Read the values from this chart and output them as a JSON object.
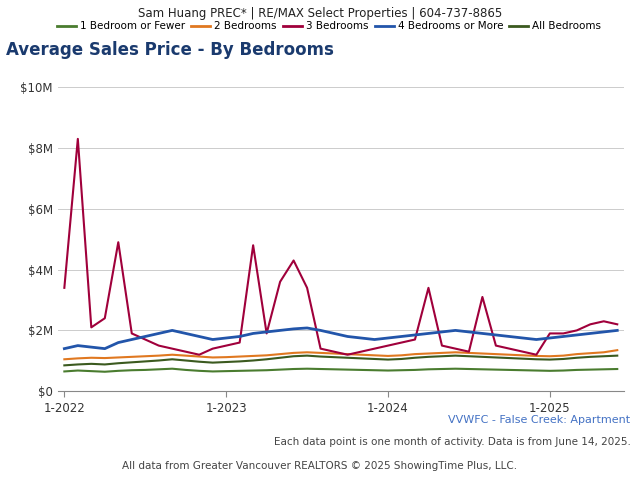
{
  "header_text": "Sam Huang PREC* | RE/MAX Select Properties | 604-737-8865",
  "title": "Average Sales Price - By Bedrooms",
  "footer1": "VVWFC - False Creek: Apartment",
  "footer2": "Each data point is one month of activity. Data is from June 14, 2025.",
  "footer3": "All data from Greater Vancouver REALTORS © 2025 ShowingTime Plus, LLC.",
  "legend_labels": [
    "1 Bedroom or Fewer",
    "2 Bedrooms",
    "3 Bedrooms",
    "4 Bedrooms or More",
    "All Bedrooms"
  ],
  "legend_colors": [
    "#4a7c2f",
    "#e07820",
    "#a0003b",
    "#2255aa",
    "#3b5a1f"
  ],
  "x_tick_labels": [
    "1-2022",
    "1-2023",
    "1-2024",
    "1-2025"
  ],
  "y_tick_labels": [
    "$0",
    "$2M",
    "$4M",
    "$6M",
    "$8M",
    "$10M"
  ],
  "ylim": [
    0,
    10000000
  ],
  "background_color": "#ffffff",
  "plot_bg_color": "#ffffff",
  "header_bg_color": "#e0e0e0",
  "months": [
    0,
    1,
    2,
    3,
    4,
    5,
    6,
    7,
    8,
    9,
    10,
    11,
    12,
    13,
    14,
    15,
    16,
    17,
    18,
    19,
    20,
    21,
    22,
    23,
    24,
    25,
    26,
    27,
    28,
    29,
    30,
    31,
    32,
    33,
    34,
    35,
    36,
    37,
    38,
    39,
    40,
    41
  ],
  "series_1bd": [
    650000,
    680000,
    660000,
    640000,
    670000,
    690000,
    700000,
    720000,
    740000,
    700000,
    670000,
    650000,
    660000,
    670000,
    680000,
    690000,
    710000,
    730000,
    740000,
    730000,
    720000,
    710000,
    700000,
    690000,
    680000,
    690000,
    700000,
    720000,
    730000,
    740000,
    730000,
    720000,
    710000,
    700000,
    690000,
    680000,
    670000,
    680000,
    700000,
    710000,
    720000,
    730000
  ],
  "series_2bd": [
    1050000,
    1080000,
    1100000,
    1090000,
    1110000,
    1130000,
    1150000,
    1170000,
    1200000,
    1170000,
    1140000,
    1110000,
    1120000,
    1140000,
    1160000,
    1180000,
    1220000,
    1260000,
    1280000,
    1260000,
    1240000,
    1220000,
    1200000,
    1180000,
    1160000,
    1180000,
    1220000,
    1240000,
    1260000,
    1280000,
    1260000,
    1240000,
    1220000,
    1200000,
    1180000,
    1160000,
    1150000,
    1170000,
    1220000,
    1250000,
    1280000,
    1350000
  ],
  "series_3bd": [
    3400000,
    8300000,
    2100000,
    2400000,
    4900000,
    1900000,
    1700000,
    1500000,
    1400000,
    1300000,
    1200000,
    1400000,
    1500000,
    1600000,
    4800000,
    1900000,
    3600000,
    4300000,
    3400000,
    1400000,
    1300000,
    1200000,
    1300000,
    1400000,
    1500000,
    1600000,
    1700000,
    3400000,
    1500000,
    1400000,
    1300000,
    3100000,
    1500000,
    1400000,
    1300000,
    1200000,
    1900000,
    1900000,
    2000000,
    2200000,
    2300000,
    2200000
  ],
  "series_4bd": [
    1400000,
    1500000,
    1450000,
    1400000,
    1600000,
    1700000,
    1800000,
    1900000,
    2000000,
    1900000,
    1800000,
    1700000,
    1750000,
    1800000,
    1900000,
    1950000,
    2000000,
    2050000,
    2080000,
    2000000,
    1900000,
    1800000,
    1750000,
    1700000,
    1750000,
    1800000,
    1850000,
    1900000,
    1950000,
    2000000,
    1950000,
    1900000,
    1850000,
    1800000,
    1750000,
    1700000,
    1750000,
    1800000,
    1850000,
    1900000,
    1950000,
    2000000
  ],
  "series_all": [
    850000,
    880000,
    900000,
    880000,
    920000,
    950000,
    980000,
    1010000,
    1050000,
    1010000,
    970000,
    940000,
    960000,
    980000,
    1010000,
    1050000,
    1100000,
    1150000,
    1170000,
    1140000,
    1120000,
    1100000,
    1080000,
    1060000,
    1040000,
    1060000,
    1100000,
    1130000,
    1150000,
    1170000,
    1150000,
    1130000,
    1110000,
    1090000,
    1070000,
    1050000,
    1040000,
    1060000,
    1100000,
    1130000,
    1150000,
    1170000
  ]
}
